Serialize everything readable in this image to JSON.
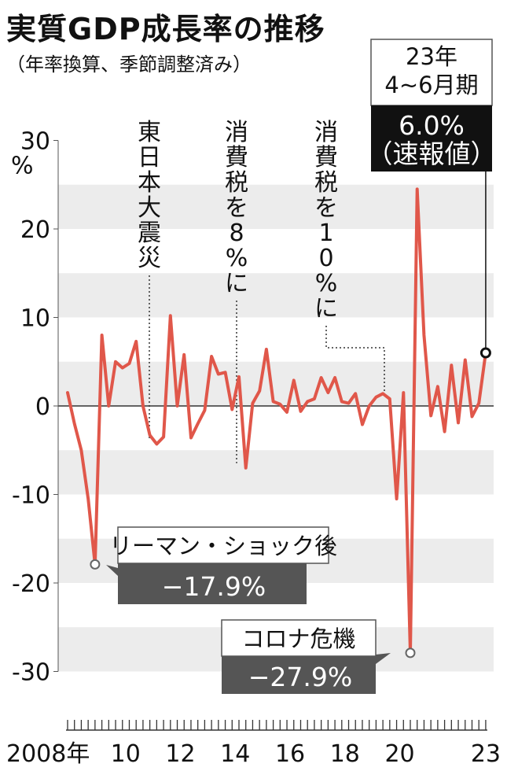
{
  "title": "実質GDP成長率の推移",
  "subtitle": "（年率換算、季節調整済み）",
  "chart_data": {
    "type": "line",
    "ylim": [
      -30,
      30
    ],
    "yticks": [
      {
        "value": 30,
        "label": "30"
      },
      {
        "value": 20,
        "label": "20"
      },
      {
        "value": 10,
        "label": "10"
      },
      {
        "value": 0,
        "label": "0"
      },
      {
        "value": -10,
        "label": "-10"
      },
      {
        "value": -20,
        "label": "-20"
      },
      {
        "value": -30,
        "label": "-30"
      }
    ],
    "y_unit": "%",
    "x_start": "2008 Q1",
    "xticks": [
      {
        "index": 0,
        "label": "2008年"
      },
      {
        "index": 8,
        "label": "10"
      },
      {
        "index": 16,
        "label": "12"
      },
      {
        "index": 24,
        "label": "14"
      },
      {
        "index": 32,
        "label": "16"
      },
      {
        "index": 40,
        "label": "18"
      },
      {
        "index": 48,
        "label": "20"
      },
      {
        "index": 61,
        "label": "23"
      }
    ],
    "series": [
      {
        "color": "#e0574a",
        "values": [
          1.5,
          -2,
          -5,
          -10.5,
          -17.9,
          8,
          0,
          5,
          4.3,
          4.8,
          7.3,
          0,
          -3.3,
          -4.3,
          -3.5,
          10.2,
          0,
          5.8,
          -3.6,
          -2,
          -0.5,
          5.6,
          3.6,
          3.8,
          -0.4,
          3.3,
          -7,
          0.3,
          1.7,
          6.4,
          0.5,
          0.2,
          -0.7,
          2.9,
          -0.6,
          0.5,
          0.8,
          3.2,
          1.5,
          3.2,
          0.5,
          0.3,
          1.4,
          -2.1,
          0,
          1,
          1.4,
          0.8,
          -10.5,
          1.5,
          -27.9,
          24.5,
          8,
          -1.1,
          2.2,
          -2.9,
          4.6,
          -1.9,
          5.2,
          -1.2,
          0.3,
          6
        ]
      }
    ],
    "annotations": [
      {
        "text": "東日本大震災",
        "index": 13
      },
      {
        "text": "消費税を8%に",
        "index": 26
      },
      {
        "text": "消費税を10%に",
        "index": 47
      }
    ],
    "callouts": [
      {
        "label": "リーマン・ショック後",
        "value_text": "−17.9%",
        "index": 4
      },
      {
        "label": "コロナ危機",
        "value_text": "−27.9%",
        "index": 50
      },
      {
        "label_lines": [
          "23年",
          "4~6月期"
        ],
        "value_text": "6.0%",
        "sub_text": "（速報値）",
        "index": 61
      }
    ]
  }
}
